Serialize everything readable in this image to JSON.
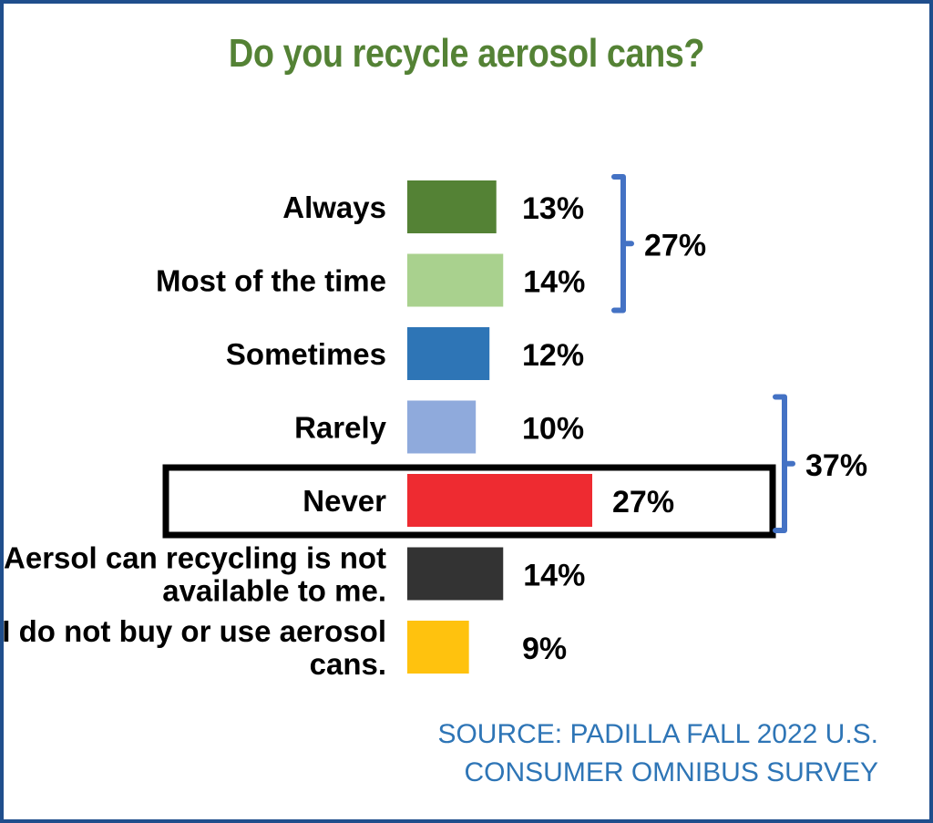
{
  "chart_data": {
    "type": "bar",
    "orientation": "horizontal",
    "title": "Do you recycle aerosol cans?",
    "categories": [
      [
        "Always"
      ],
      [
        "Most of the time"
      ],
      [
        "Sometimes"
      ],
      [
        "Rarely"
      ],
      [
        "Never"
      ],
      [
        "Aersol can recycling is not",
        "available to me."
      ],
      [
        "I do not buy or use aerosol",
        "cans."
      ]
    ],
    "values": [
      13,
      14,
      12,
      10,
      27,
      14,
      9
    ],
    "value_labels": [
      "13%",
      "14%",
      "12%",
      "10%",
      "27%",
      "14%",
      "9%"
    ],
    "bar_colors": [
      "#548235",
      "#a9d18e",
      "#2e75b6",
      "#8faadc",
      "#ee2b31",
      "#333333",
      "#ffc20e"
    ],
    "highlighted_category": "Never",
    "groups": [
      {
        "label": "27%",
        "from_index": 0,
        "to_index": 1
      },
      {
        "label": "37%",
        "from_index": 3,
        "to_index": 4
      }
    ],
    "xlim": [
      0,
      27
    ]
  },
  "source": {
    "line1": "SOURCE: PADILLA FALL 2022 U.S.",
    "line2": "CONSUMER OMNIBUS SURVEY"
  },
  "colors": {
    "title": "#548235",
    "source": "#2e75b6",
    "bracket": "#4472c4",
    "border": "#1f4e8c",
    "text": "#000000"
  }
}
